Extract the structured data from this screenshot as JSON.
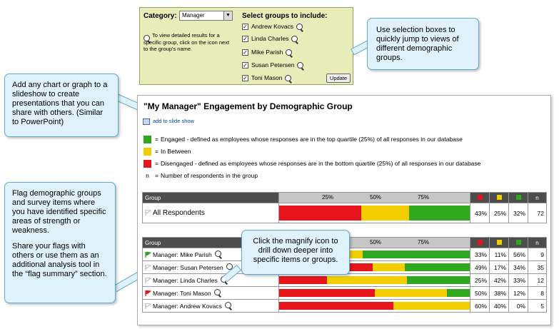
{
  "selector": {
    "category_label": "Category:",
    "category_value": "Manager",
    "hint": "To view detailed results for a specific group, click on the icon next to the group's name.",
    "groups_title": "Select groups to include:",
    "groups": [
      "Andrew Kovacs",
      "Linda Charles",
      "Mike Parish",
      "Susan Petersen",
      "Toni Mason"
    ],
    "update_label": "Update"
  },
  "callouts": {
    "selection": "Use selection boxes to quickly jump to views of different demographic groups.",
    "slideshow": "Add any chart or graph to a slideshow to create presentations that you can share with others. (Similar to PowerPoint)",
    "flags_p1": "Flag demographic groups and survey items where you have identified specific areas of strength or weakness.",
    "flags_p2": "Share your flags with others or use them as an additional analysis tool in the “flag summary” section.",
    "magnify": "Click the magnify icon to drill down deeper into specific items or groups."
  },
  "report": {
    "title": "\"My Manager\" Engagement by Demographic Group",
    "slide_link": "add to slide show",
    "legend": [
      {
        "sym": "green",
        "text": "Engaged - defined as employees whose responses are in the top quartile (25%) of all responses in our database"
      },
      {
        "sym": "yellow",
        "text": "In Between"
      },
      {
        "sym": "red",
        "text": "Disengaged - defined as employees whose responses are in the bottom quartile (25%) of all responses in our database"
      },
      {
        "sym": "n",
        "text": "Number of respondents in the group"
      }
    ],
    "legend_eq": "=",
    "legend_n": "n",
    "col_group": "Group",
    "ticks": [
      "25%",
      "50%",
      "75%"
    ],
    "col_n": "n",
    "colors": {
      "red": "#e8141b",
      "yellow": "#f2cd00",
      "green": "#2fa81f"
    },
    "all_row": {
      "label": "All Respondents",
      "red": "43%",
      "yellow": "25%",
      "green": "32%",
      "n": "72",
      "r": 43,
      "y": 25,
      "g": 32
    },
    "rows": [
      {
        "label": "Manager: Mike Parish",
        "flag": "green",
        "red": "33%",
        "yellow": "11%",
        "green": "56%",
        "n": "9",
        "r": 33,
        "y": 11,
        "g": 56
      },
      {
        "label": "Manager: Susan Petersen",
        "flag": "none",
        "red": "49%",
        "yellow": "17%",
        "green": "34%",
        "n": "35",
        "r": 49,
        "y": 17,
        "g": 34
      },
      {
        "label": "Manager: Linda Charles",
        "flag": "none",
        "red": "25%",
        "yellow": "42%",
        "green": "33%",
        "n": "12",
        "r": 25,
        "y": 42,
        "g": 33
      },
      {
        "label": "Manager: Toni Mason",
        "flag": "red",
        "red": "50%",
        "yellow": "38%",
        "green": "12%",
        "n": "8",
        "r": 50,
        "y": 38,
        "g": 12
      },
      {
        "label": "Manager: Andrew Kovacs",
        "flag": "none",
        "red": "60%",
        "yellow": "40%",
        "green": "0%",
        "n": "5",
        "r": 60,
        "y": 40,
        "g": 0
      }
    ]
  }
}
